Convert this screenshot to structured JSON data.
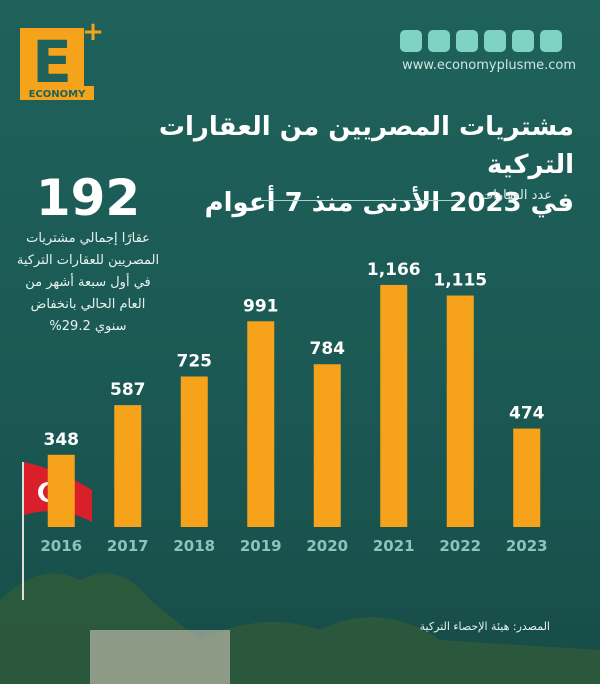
{
  "brand": {
    "logo": "ECONOMY",
    "website": "www.economyplusme.com"
  },
  "chart_data": {
    "type": "bar",
    "title": [
      "مشتريات المصريين من العقارات التركية",
      "في 2023 الأدنى منذ 7 أعوام"
    ],
    "y_label": "عدد العقارات",
    "categories": [
      "2016",
      "2017",
      "2018",
      "2019",
      "2020",
      "2021",
      "2022",
      "2023"
    ],
    "values": [
      348,
      587,
      725,
      991,
      784,
      1166,
      1115,
      474
    ],
    "value_labels": [
      "348",
      "587",
      "725",
      "991",
      "784",
      "1,166",
      "1,115",
      "474"
    ],
    "color": "#f7a21b",
    "annotation": {
      "value": 192,
      "text": [
        "عقارًا إجمالي مشتريات",
        "المصريين للعقارات التركية",
        "في أول سبعة أشهر من",
        "العام الحالي بانخفاض",
        "سنوي 29.2%"
      ]
    },
    "source": "المصدر: هيئة الإحصاء التركية"
  }
}
